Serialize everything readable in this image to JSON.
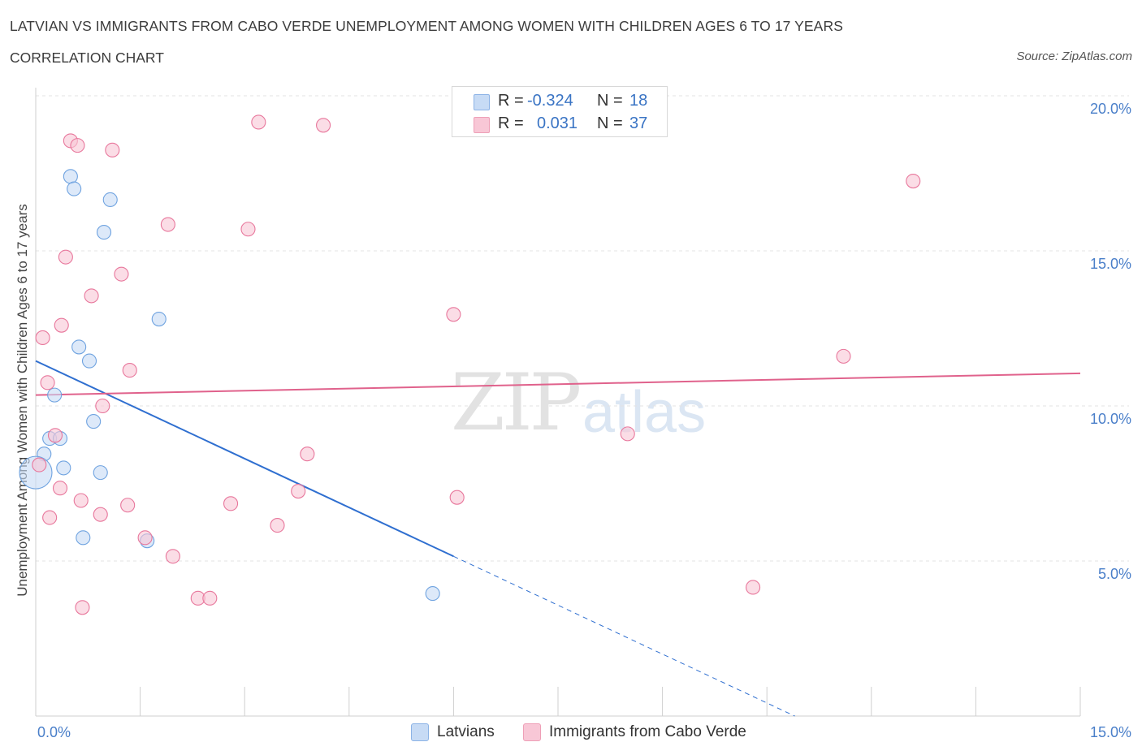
{
  "header": {
    "title": "LATVIAN VS IMMIGRANTS FROM CABO VERDE UNEMPLOYMENT AMONG WOMEN WITH CHILDREN AGES 6 TO 17 YEARS",
    "subtitle": "CORRELATION CHART",
    "source": "Source: ZipAtlas.com"
  },
  "watermark": {
    "zip": "ZIP",
    "atlas": "atlas"
  },
  "legend": {
    "r_label": "R =",
    "n_label": "N =",
    "rows": [
      {
        "r": "-0.324",
        "n": "18",
        "color": "#b9d1f2"
      },
      {
        "r": "0.031",
        "n": "37",
        "color": "#f8c7d6"
      }
    ]
  },
  "bottom_legend": [
    "Latvians",
    "Immigrants from Cabo Verde"
  ],
  "chart_data": {
    "type": "scatter",
    "title": "LATVIAN VS IMMIGRANTS FROM CABO VERDE UNEMPLOYMENT AMONG WOMEN WITH CHILDREN AGES 6 TO 17 YEARS",
    "xlabel": "",
    "ylabel": "Unemployment Among Women with Children Ages 6 to 17 years",
    "xlim": [
      0,
      15
    ],
    "ylim": [
      0,
      20
    ],
    "x_tick_labels": [
      "0.0%",
      "15.0%"
    ],
    "y_tick_labels": [
      "5.0%",
      "10.0%",
      "15.0%",
      "20.0%"
    ],
    "y_ticks": [
      5,
      10,
      15,
      20
    ],
    "grid": true,
    "legend_position": "top-center",
    "series": [
      {
        "name": "Latvians",
        "color": "#6fa3e0",
        "fill": "#c7dbf5",
        "r": -0.324,
        "n": 18,
        "points": [
          [
            0.5,
            17.4
          ],
          [
            0.55,
            17.0
          ],
          [
            1.07,
            16.65
          ],
          [
            0.98,
            15.6
          ],
          [
            1.77,
            12.8
          ],
          [
            0.62,
            11.9
          ],
          [
            0.77,
            11.45
          ],
          [
            0.27,
            10.35
          ],
          [
            0.83,
            9.5
          ],
          [
            0.2,
            8.95
          ],
          [
            0.35,
            8.95
          ],
          [
            0.12,
            8.45
          ],
          [
            0.0,
            7.85
          ],
          [
            0.4,
            8.0
          ],
          [
            0.93,
            7.85
          ],
          [
            0.68,
            5.75
          ],
          [
            1.6,
            5.65
          ],
          [
            5.7,
            3.95
          ]
        ],
        "trend": {
          "x0": 0.0,
          "y0": 11.45,
          "x1": 6.0,
          "y1": 5.15,
          "dashed_to": [
            10.9,
            0.0
          ]
        }
      },
      {
        "name": "Immigrants from Cabo Verde",
        "color": "#e8779c",
        "fill": "#f8c7d6",
        "r": 0.031,
        "n": 37,
        "points": [
          [
            3.2,
            19.15
          ],
          [
            4.13,
            19.05
          ],
          [
            0.5,
            18.55
          ],
          [
            0.6,
            18.4
          ],
          [
            1.1,
            18.25
          ],
          [
            12.6,
            17.25
          ],
          [
            1.9,
            15.85
          ],
          [
            3.05,
            15.7
          ],
          [
            0.43,
            14.8
          ],
          [
            1.23,
            14.25
          ],
          [
            0.8,
            13.55
          ],
          [
            6.0,
            12.95
          ],
          [
            0.37,
            12.6
          ],
          [
            0.1,
            12.2
          ],
          [
            11.6,
            11.6
          ],
          [
            1.35,
            11.15
          ],
          [
            0.17,
            10.75
          ],
          [
            0.96,
            10.0
          ],
          [
            0.28,
            9.05
          ],
          [
            8.5,
            9.1
          ],
          [
            3.9,
            8.45
          ],
          [
            0.05,
            8.1
          ],
          [
            0.35,
            7.35
          ],
          [
            3.77,
            7.25
          ],
          [
            6.05,
            7.05
          ],
          [
            0.65,
            6.95
          ],
          [
            1.32,
            6.8
          ],
          [
            2.8,
            6.85
          ],
          [
            0.2,
            6.4
          ],
          [
            0.93,
            6.5
          ],
          [
            3.47,
            6.15
          ],
          [
            1.57,
            5.75
          ],
          [
            1.97,
            5.15
          ],
          [
            10.3,
            4.15
          ],
          [
            2.33,
            3.8
          ],
          [
            2.5,
            3.8
          ],
          [
            0.67,
            3.5
          ]
        ],
        "trend": {
          "x0": 0.0,
          "y0": 10.35,
          "x1": 15.0,
          "y1": 11.05
        }
      }
    ]
  }
}
